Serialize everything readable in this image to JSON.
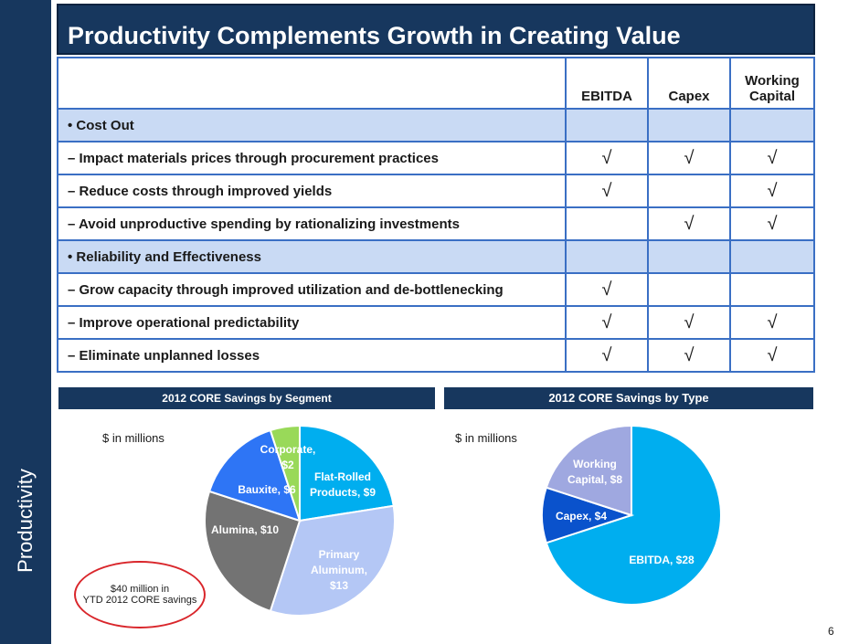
{
  "sidebar": {
    "label": "Productivity"
  },
  "title": "Productivity Complements Growth in Creating Value",
  "table": {
    "headers": [
      "EBITDA",
      "Capex",
      "Working Capital"
    ],
    "check_symbol": "√",
    "rows": [
      {
        "type": "section",
        "label": "• Cost Out",
        "checks": [
          false,
          false,
          false
        ]
      },
      {
        "type": "item",
        "label": "–  Impact materials prices through procurement practices",
        "checks": [
          true,
          true,
          true
        ]
      },
      {
        "type": "item",
        "label": "–  Reduce costs through improved yields",
        "checks": [
          true,
          false,
          true
        ]
      },
      {
        "type": "item",
        "label": "–  Avoid unproductive spending by rationalizing investments",
        "checks": [
          false,
          true,
          true
        ]
      },
      {
        "type": "section",
        "label": "• Reliability and Effectiveness",
        "checks": [
          false,
          false,
          false
        ]
      },
      {
        "type": "item",
        "label": "–  Grow capacity through improved utilization and de-bottlenecking",
        "checks": [
          true,
          false,
          false
        ]
      },
      {
        "type": "item",
        "label": "–  Improve operational predictability",
        "checks": [
          true,
          true,
          true
        ]
      },
      {
        "type": "item",
        "label": "–  Eliminate unplanned losses",
        "checks": [
          true,
          true,
          true
        ]
      }
    ]
  },
  "segment_chart": {
    "header": "2012 CORE Savings by Segment",
    "unit_note": "$ in millions",
    "callout_line1": "$40 million in",
    "callout_line2": "YTD 2012 CORE savings"
  },
  "type_chart": {
    "header": "2012 CORE Savings by Type",
    "unit_note": "$ in millions"
  },
  "chart_data": [
    {
      "type": "pie",
      "title": "2012 CORE Savings by Segment",
      "unit": "$ in millions",
      "slices": [
        {
          "name": "Flat-Rolled Products",
          "value": 9,
          "label_lines": [
            "Flat-Rolled",
            "Products,  $9"
          ],
          "color": "#00aeef",
          "label_color": "#ffffff"
        },
        {
          "name": "Primary Aluminum",
          "value": 13,
          "label_lines": [
            "Primary",
            "Aluminum,",
            "$13"
          ],
          "color": "#b4c7f5",
          "label_color": "#ffffff"
        },
        {
          "name": "Alumina",
          "value": 10,
          "label_lines": [
            "Alumina,  $10"
          ],
          "color": "#737373",
          "label_color": "#ffffff"
        },
        {
          "name": "Bauxite",
          "value": 6,
          "label_lines": [
            "Bauxite,  $6"
          ],
          "color": "#2e75f5",
          "label_color": "#ffffff"
        },
        {
          "name": "Corporate",
          "value": 2,
          "label_lines": [
            "Corporate,",
            "$2"
          ],
          "color": "#99d959",
          "label_color": "#ffffff"
        }
      ]
    },
    {
      "type": "pie",
      "title": "2012 CORE Savings by Type",
      "unit": "$ in millions",
      "slices": [
        {
          "name": "EBITDA",
          "value": 28,
          "label_lines": [
            "EBITDA,  $28"
          ],
          "color": "#00aeef",
          "label_color": "#ffffff"
        },
        {
          "name": "Capex",
          "value": 4,
          "label_lines": [
            "Capex,  $4"
          ],
          "color": "#0a52cc",
          "label_color": "#ffffff"
        },
        {
          "name": "Working Capital",
          "value": 8,
          "label_lines": [
            "Working",
            "Capital,  $8"
          ],
          "color": "#9fa8e0",
          "label_color": "#ffffff"
        }
      ]
    }
  ],
  "page_number": "6"
}
